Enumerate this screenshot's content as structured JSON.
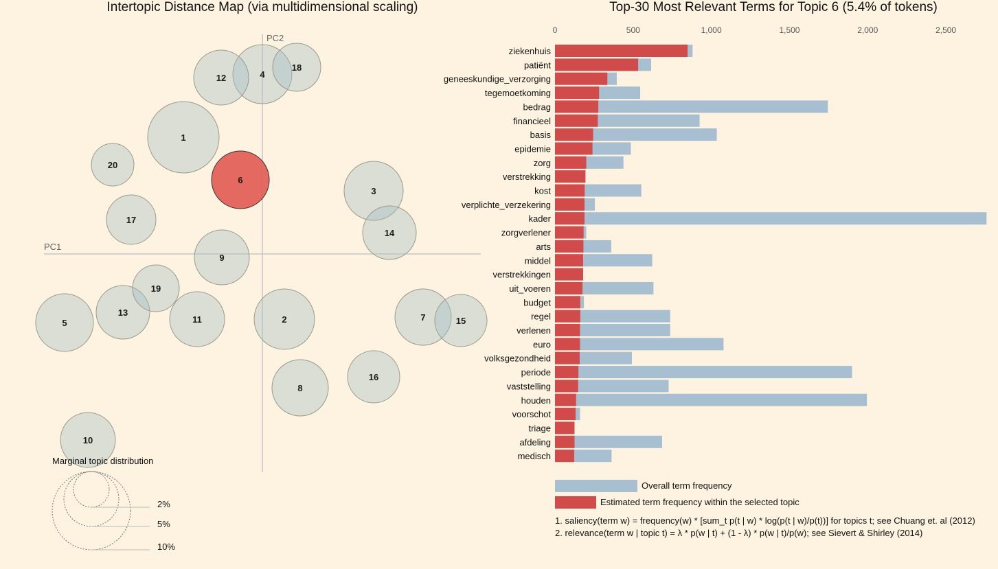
{
  "left_panel": {
    "title": "Intertopic Distance Map (via multidimensional scaling)",
    "pc1_label": "PC1",
    "pc2_label": "PC2",
    "selected_topic": 6,
    "topics": [
      {
        "id": 1,
        "x": -115,
        "y": 170,
        "r": 52
      },
      {
        "id": 2,
        "x": 32,
        "y": -95,
        "r": 44
      },
      {
        "id": 3,
        "x": 162,
        "y": 92,
        "r": 43
      },
      {
        "id": 4,
        "x": 0,
        "y": 262,
        "r": 43
      },
      {
        "id": 5,
        "x": -288,
        "y": -100,
        "r": 42
      },
      {
        "id": 6,
        "x": -32,
        "y": 108,
        "r": 42
      },
      {
        "id": 7,
        "x": 234,
        "y": -92,
        "r": 41
      },
      {
        "id": 8,
        "x": 55,
        "y": -195,
        "r": 41
      },
      {
        "id": 9,
        "x": -59,
        "y": -5,
        "r": 40
      },
      {
        "id": 10,
        "x": -254,
        "y": -271,
        "r": 40
      },
      {
        "id": 11,
        "x": -95,
        "y": -95,
        "r": 40
      },
      {
        "id": 12,
        "x": -60,
        "y": 257,
        "r": 40
      },
      {
        "id": 13,
        "x": -203,
        "y": -85,
        "r": 39
      },
      {
        "id": 14,
        "x": 185,
        "y": 31,
        "r": 39
      },
      {
        "id": 15,
        "x": 289,
        "y": -97,
        "r": 38
      },
      {
        "id": 16,
        "x": 162,
        "y": -179,
        "r": 38
      },
      {
        "id": 17,
        "x": -191,
        "y": 50,
        "r": 36
      },
      {
        "id": 18,
        "x": 50,
        "y": 272,
        "r": 35
      },
      {
        "id": 19,
        "x": -155,
        "y": -50,
        "r": 34
      },
      {
        "id": 20,
        "x": -218,
        "y": 130,
        "r": 31
      }
    ],
    "marginal": {
      "title": "Marginal topic distribution",
      "levels": [
        {
          "label": "2%"
        },
        {
          "label": "5%"
        },
        {
          "label": "10%"
        }
      ]
    }
  },
  "right_panel": {
    "title": "Top-30 Most Relevant Terms for Topic 6 (5.4% of tokens)",
    "legend": {
      "overall": "Overall term frequency",
      "estimated": "Estimated term frequency within the selected topic"
    },
    "footnotes": [
      "1. saliency(term w) = frequency(w) * [sum_t p(t | w) * log(p(t | w)/p(t))] for topics t; see Chuang et. al (2012)",
      "2. relevance(term w | topic t) = λ * p(w | t) + (1 - λ) * p(w | t)/p(w); see Sievert & Shirley (2014)"
    ]
  },
  "chart_data": [
    {
      "type": "scatter",
      "title": "Intertopic Distance Map (via multidimensional scaling)",
      "xlabel": "PC1",
      "ylabel": "PC2",
      "note": "bubble chart; x/y are estimated topic positions, r encodes marginal topic distribution",
      "marginal_legend": [
        "2%",
        "5%",
        "10%"
      ]
    },
    {
      "type": "bar",
      "orientation": "horizontal",
      "title": "Top-30 Most Relevant Terms for Topic 6 (5.4% of tokens)",
      "xlim": [
        0,
        2750
      ],
      "ticks": [
        0,
        500,
        1000,
        1500,
        2000,
        2500
      ],
      "tick_labels": [
        "0",
        "500",
        "1,000",
        "1,500",
        "2,000",
        "2,500"
      ],
      "colors": {
        "overall": "#a7bfd0",
        "estimated": "#d24b4b"
      },
      "categories": [
        "ziekenhuis",
        "patiënt",
        "geneeskundige_verzorging",
        "tegemoetkoming",
        "bedrag",
        "financieel",
        "basis",
        "epidemie",
        "zorg",
        "verstrekking",
        "kost",
        "verplichte_verzekering",
        "kader",
        "zorgverlener",
        "arts",
        "middel",
        "verstrekkingen",
        "uit_voeren",
        "budget",
        "regel",
        "verlenen",
        "euro",
        "volksgezondheid",
        "periode",
        "vaststelling",
        "houden",
        "voorschot",
        "triage",
        "afdeling",
        "medisch"
      ],
      "series": [
        {
          "name": "Overall term frequency",
          "values": [
            880,
            615,
            395,
            545,
            1745,
            925,
            1035,
            485,
            438,
            195,
            552,
            255,
            2760,
            200,
            360,
            622,
            180,
            630,
            185,
            737,
            737,
            1078,
            492,
            1900,
            727,
            1995,
            160,
            125,
            685,
            362
          ]
        },
        {
          "name": "Estimated term frequency within the selected topic",
          "values": [
            848,
            532,
            335,
            282,
            277,
            274,
            244,
            240,
            200,
            195,
            190,
            189,
            189,
            183,
            182,
            180,
            180,
            176,
            162,
            162,
            160,
            160,
            158,
            150,
            148,
            135,
            132,
            125,
            125,
            123
          ]
        }
      ]
    }
  ]
}
